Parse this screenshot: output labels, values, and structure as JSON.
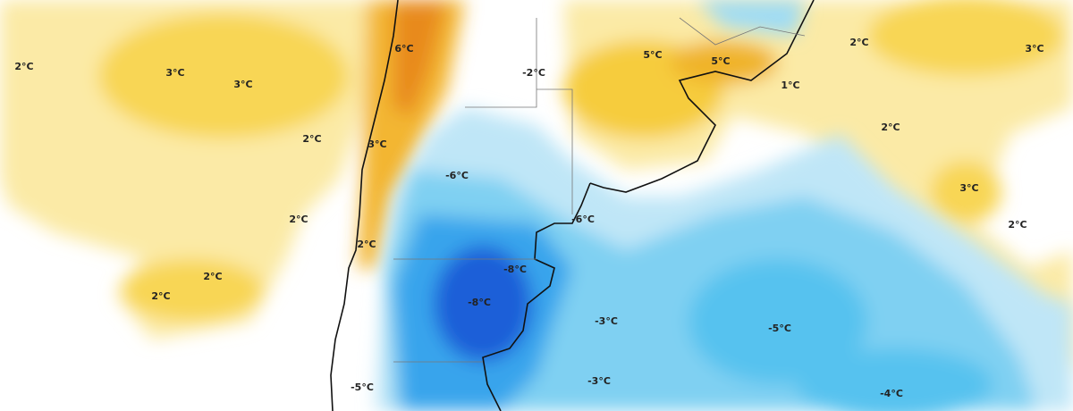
{
  "labels": [
    "2°C",
    "3°C",
    "3°C",
    "6°C",
    "-2°C",
    "5°C",
    "5°C",
    "2°C",
    "3°C",
    "1°C",
    "2°C",
    "3°C",
    "2°C",
    "-6°C",
    "3°C",
    "-6°C",
    "2°C",
    "2°C",
    "2°C",
    "-8°C",
    "2°C",
    "2°C",
    "-8°C",
    "-3°C",
    "-5°C",
    "-3°C",
    "-4°C",
    "-5°C"
  ]
}
